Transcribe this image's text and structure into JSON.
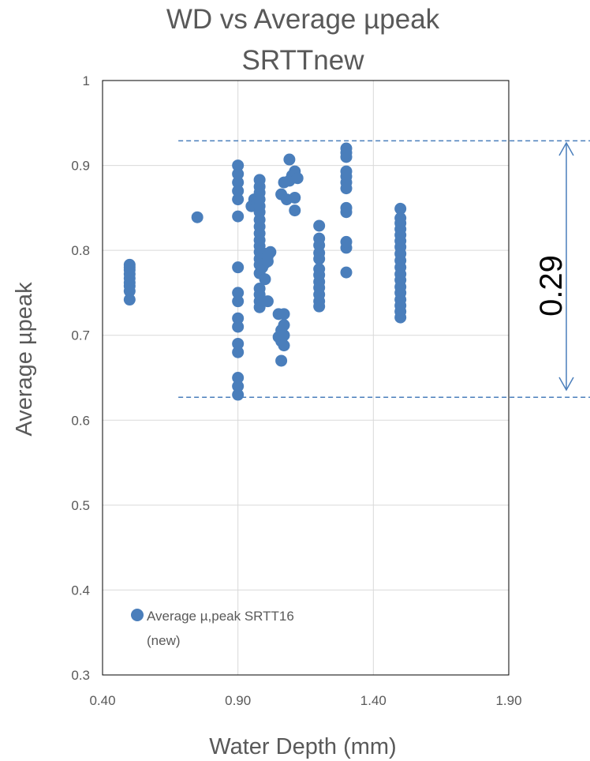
{
  "chart_data": {
    "type": "scatter",
    "title_lines": [
      "WD vs Average µpeak",
      "SRTTnew"
    ],
    "xlabel": "Water Depth (mm)",
    "ylabel": "Average µpeak",
    "xlim": [
      0.4,
      1.9
    ],
    "ylim": [
      0.3,
      1.0
    ],
    "x_ticks": [
      "0.40",
      "0.90",
      "1.40",
      "1.90"
    ],
    "y_ticks": [
      "0.3",
      "0.4",
      "0.5",
      "0.6",
      "0.7",
      "0.8",
      "0.9",
      "1"
    ],
    "grid": true,
    "legend_position": "bottom-left",
    "series": [
      {
        "name_lines": [
          "Average µ,peak SRTT16",
          "(new)"
        ],
        "color": "#4a7ebb",
        "points": [
          [
            0.5,
            0.742
          ],
          [
            0.5,
            0.752
          ],
          [
            0.5,
            0.758
          ],
          [
            0.5,
            0.762
          ],
          [
            0.5,
            0.767
          ],
          [
            0.5,
            0.772
          ],
          [
            0.5,
            0.777
          ],
          [
            0.5,
            0.78
          ],
          [
            0.5,
            0.783
          ],
          [
            0.75,
            0.839
          ],
          [
            0.9,
            0.63
          ],
          [
            0.9,
            0.64
          ],
          [
            0.9,
            0.65
          ],
          [
            0.9,
            0.68
          ],
          [
            0.9,
            0.69
          ],
          [
            0.9,
            0.71
          ],
          [
            0.9,
            0.72
          ],
          [
            0.9,
            0.74
          ],
          [
            0.9,
            0.75
          ],
          [
            0.9,
            0.78
          ],
          [
            0.9,
            0.84
          ],
          [
            0.9,
            0.86
          ],
          [
            0.9,
            0.87
          ],
          [
            0.9,
            0.88
          ],
          [
            0.9,
            0.89
          ],
          [
            0.9,
            0.9
          ],
          [
            0.95,
            0.852
          ],
          [
            0.96,
            0.86
          ],
          [
            0.97,
            0.855
          ],
          [
            0.98,
            0.733
          ],
          [
            0.98,
            0.74
          ],
          [
            0.98,
            0.748
          ],
          [
            0.98,
            0.755
          ],
          [
            0.98,
            0.773
          ],
          [
            0.98,
            0.783
          ],
          [
            0.98,
            0.79
          ],
          [
            0.98,
            0.798
          ],
          [
            0.98,
            0.805
          ],
          [
            0.98,
            0.812
          ],
          [
            0.98,
            0.82
          ],
          [
            0.98,
            0.828
          ],
          [
            0.98,
            0.836
          ],
          [
            0.98,
            0.845
          ],
          [
            0.98,
            0.852
          ],
          [
            0.98,
            0.86
          ],
          [
            0.98,
            0.868
          ],
          [
            0.98,
            0.875
          ],
          [
            0.98,
            0.883
          ],
          [
            0.99,
            0.78
          ],
          [
            1.0,
            0.785
          ],
          [
            1.0,
            0.79
          ],
          [
            1.0,
            0.796
          ],
          [
            1.01,
            0.793
          ],
          [
            1.01,
            0.787
          ],
          [
            1.02,
            0.798
          ],
          [
            1.0,
            0.766
          ],
          [
            1.01,
            0.74
          ],
          [
            1.05,
            0.725
          ],
          [
            1.05,
            0.698
          ],
          [
            1.06,
            0.67
          ],
          [
            1.06,
            0.693
          ],
          [
            1.06,
            0.706
          ],
          [
            1.07,
            0.712
          ],
          [
            1.07,
            0.688
          ],
          [
            1.07,
            0.7
          ],
          [
            1.07,
            0.725
          ],
          [
            1.06,
            0.866
          ],
          [
            1.07,
            0.88
          ],
          [
            1.08,
            0.86
          ],
          [
            1.09,
            0.907
          ],
          [
            1.09,
            0.882
          ],
          [
            1.1,
            0.888
          ],
          [
            1.11,
            0.893
          ],
          [
            1.11,
            0.862
          ],
          [
            1.11,
            0.847
          ],
          [
            1.12,
            0.885
          ],
          [
            1.2,
            0.734
          ],
          [
            1.2,
            0.74
          ],
          [
            1.2,
            0.748
          ],
          [
            1.2,
            0.756
          ],
          [
            1.2,
            0.763
          ],
          [
            1.2,
            0.771
          ],
          [
            1.2,
            0.778
          ],
          [
            1.2,
            0.79
          ],
          [
            1.2,
            0.797
          ],
          [
            1.2,
            0.806
          ],
          [
            1.2,
            0.814
          ],
          [
            1.2,
            0.829
          ],
          [
            1.3,
            0.774
          ],
          [
            1.3,
            0.803
          ],
          [
            1.3,
            0.81
          ],
          [
            1.3,
            0.845
          ],
          [
            1.3,
            0.85
          ],
          [
            1.3,
            0.873
          ],
          [
            1.3,
            0.88
          ],
          [
            1.3,
            0.887
          ],
          [
            1.3,
            0.893
          ],
          [
            1.3,
            0.91
          ],
          [
            1.3,
            0.915
          ],
          [
            1.3,
            0.92
          ],
          [
            1.5,
            0.721
          ],
          [
            1.5,
            0.728
          ],
          [
            1.5,
            0.735
          ],
          [
            1.5,
            0.742
          ],
          [
            1.5,
            0.75
          ],
          [
            1.5,
            0.757
          ],
          [
            1.5,
            0.765
          ],
          [
            1.5,
            0.772
          ],
          [
            1.5,
            0.78
          ],
          [
            1.5,
            0.788
          ],
          [
            1.5,
            0.796
          ],
          [
            1.5,
            0.804
          ],
          [
            1.5,
            0.811
          ],
          [
            1.5,
            0.818
          ],
          [
            1.5,
            0.825
          ],
          [
            1.5,
            0.832
          ],
          [
            1.5,
            0.838
          ],
          [
            1.5,
            0.849
          ]
        ]
      }
    ],
    "annotation": {
      "text": "0.29",
      "upper_y": 0.929,
      "lower_y": 0.627,
      "x_start": 0.68,
      "line_color": "#4a7ebb"
    }
  }
}
